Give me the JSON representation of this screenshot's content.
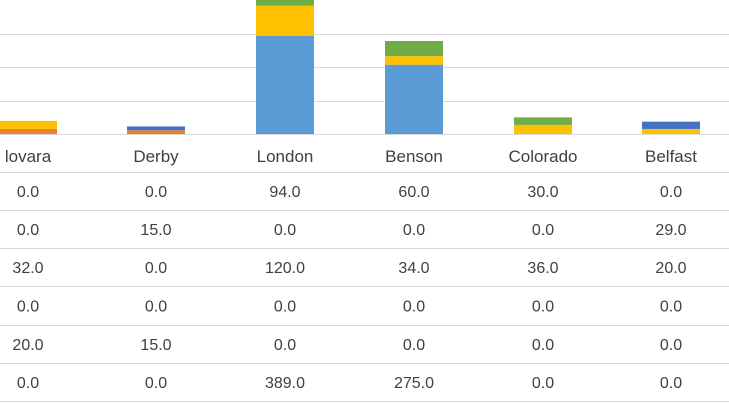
{
  "chart_data": {
    "type": "bar",
    "stacked": true,
    "categories": [
      "lovara",
      "Derby",
      "London",
      "Benson",
      "Colorado",
      "Belfast"
    ],
    "series": [
      {
        "values": [
          0.0,
          0.0,
          389.0,
          275.0,
          0.0,
          0.0
        ],
        "color": "#5b9bd5"
      },
      {
        "values": [
          20.0,
          15.0,
          0.0,
          0.0,
          0.0,
          0.0
        ],
        "color": "#ed7d31"
      },
      {
        "values": [
          0.0,
          0.0,
          0.0,
          0.0,
          0.0,
          0.0
        ],
        "color": "#a5a5a5"
      },
      {
        "values": [
          32.0,
          0.0,
          120.0,
          34.0,
          36.0,
          20.0
        ],
        "color": "#ffc000"
      },
      {
        "values": [
          0.0,
          15.0,
          0.0,
          0.0,
          0.0,
          29.0
        ],
        "color": "#4472c4"
      },
      {
        "values": [
          0.0,
          0.0,
          94.0,
          60.0,
          30.0,
          0.0
        ],
        "color": "#70ad47"
      }
    ],
    "table_rows": [
      [
        "0.0",
        "0.0",
        "94.0",
        "60.0",
        "30.0",
        "0.0"
      ],
      [
        "0.0",
        "15.0",
        "0.0",
        "0.0",
        "0.0",
        "29.0"
      ],
      [
        "32.0",
        "0.0",
        "120.0",
        "34.0",
        "36.0",
        "20.0"
      ],
      [
        "0.0",
        "0.0",
        "0.0",
        "0.0",
        "0.0",
        "0.0"
      ],
      [
        "20.0",
        "15.0",
        "0.0",
        "0.0",
        "0.0",
        "0.0"
      ],
      [
        "0.0",
        "0.0",
        "389.0",
        "275.0",
        "0.0",
        "0.0"
      ]
    ],
    "gridlines": true,
    "colors": {
      "grid": "#d9d9d9",
      "text": "#404040"
    }
  }
}
